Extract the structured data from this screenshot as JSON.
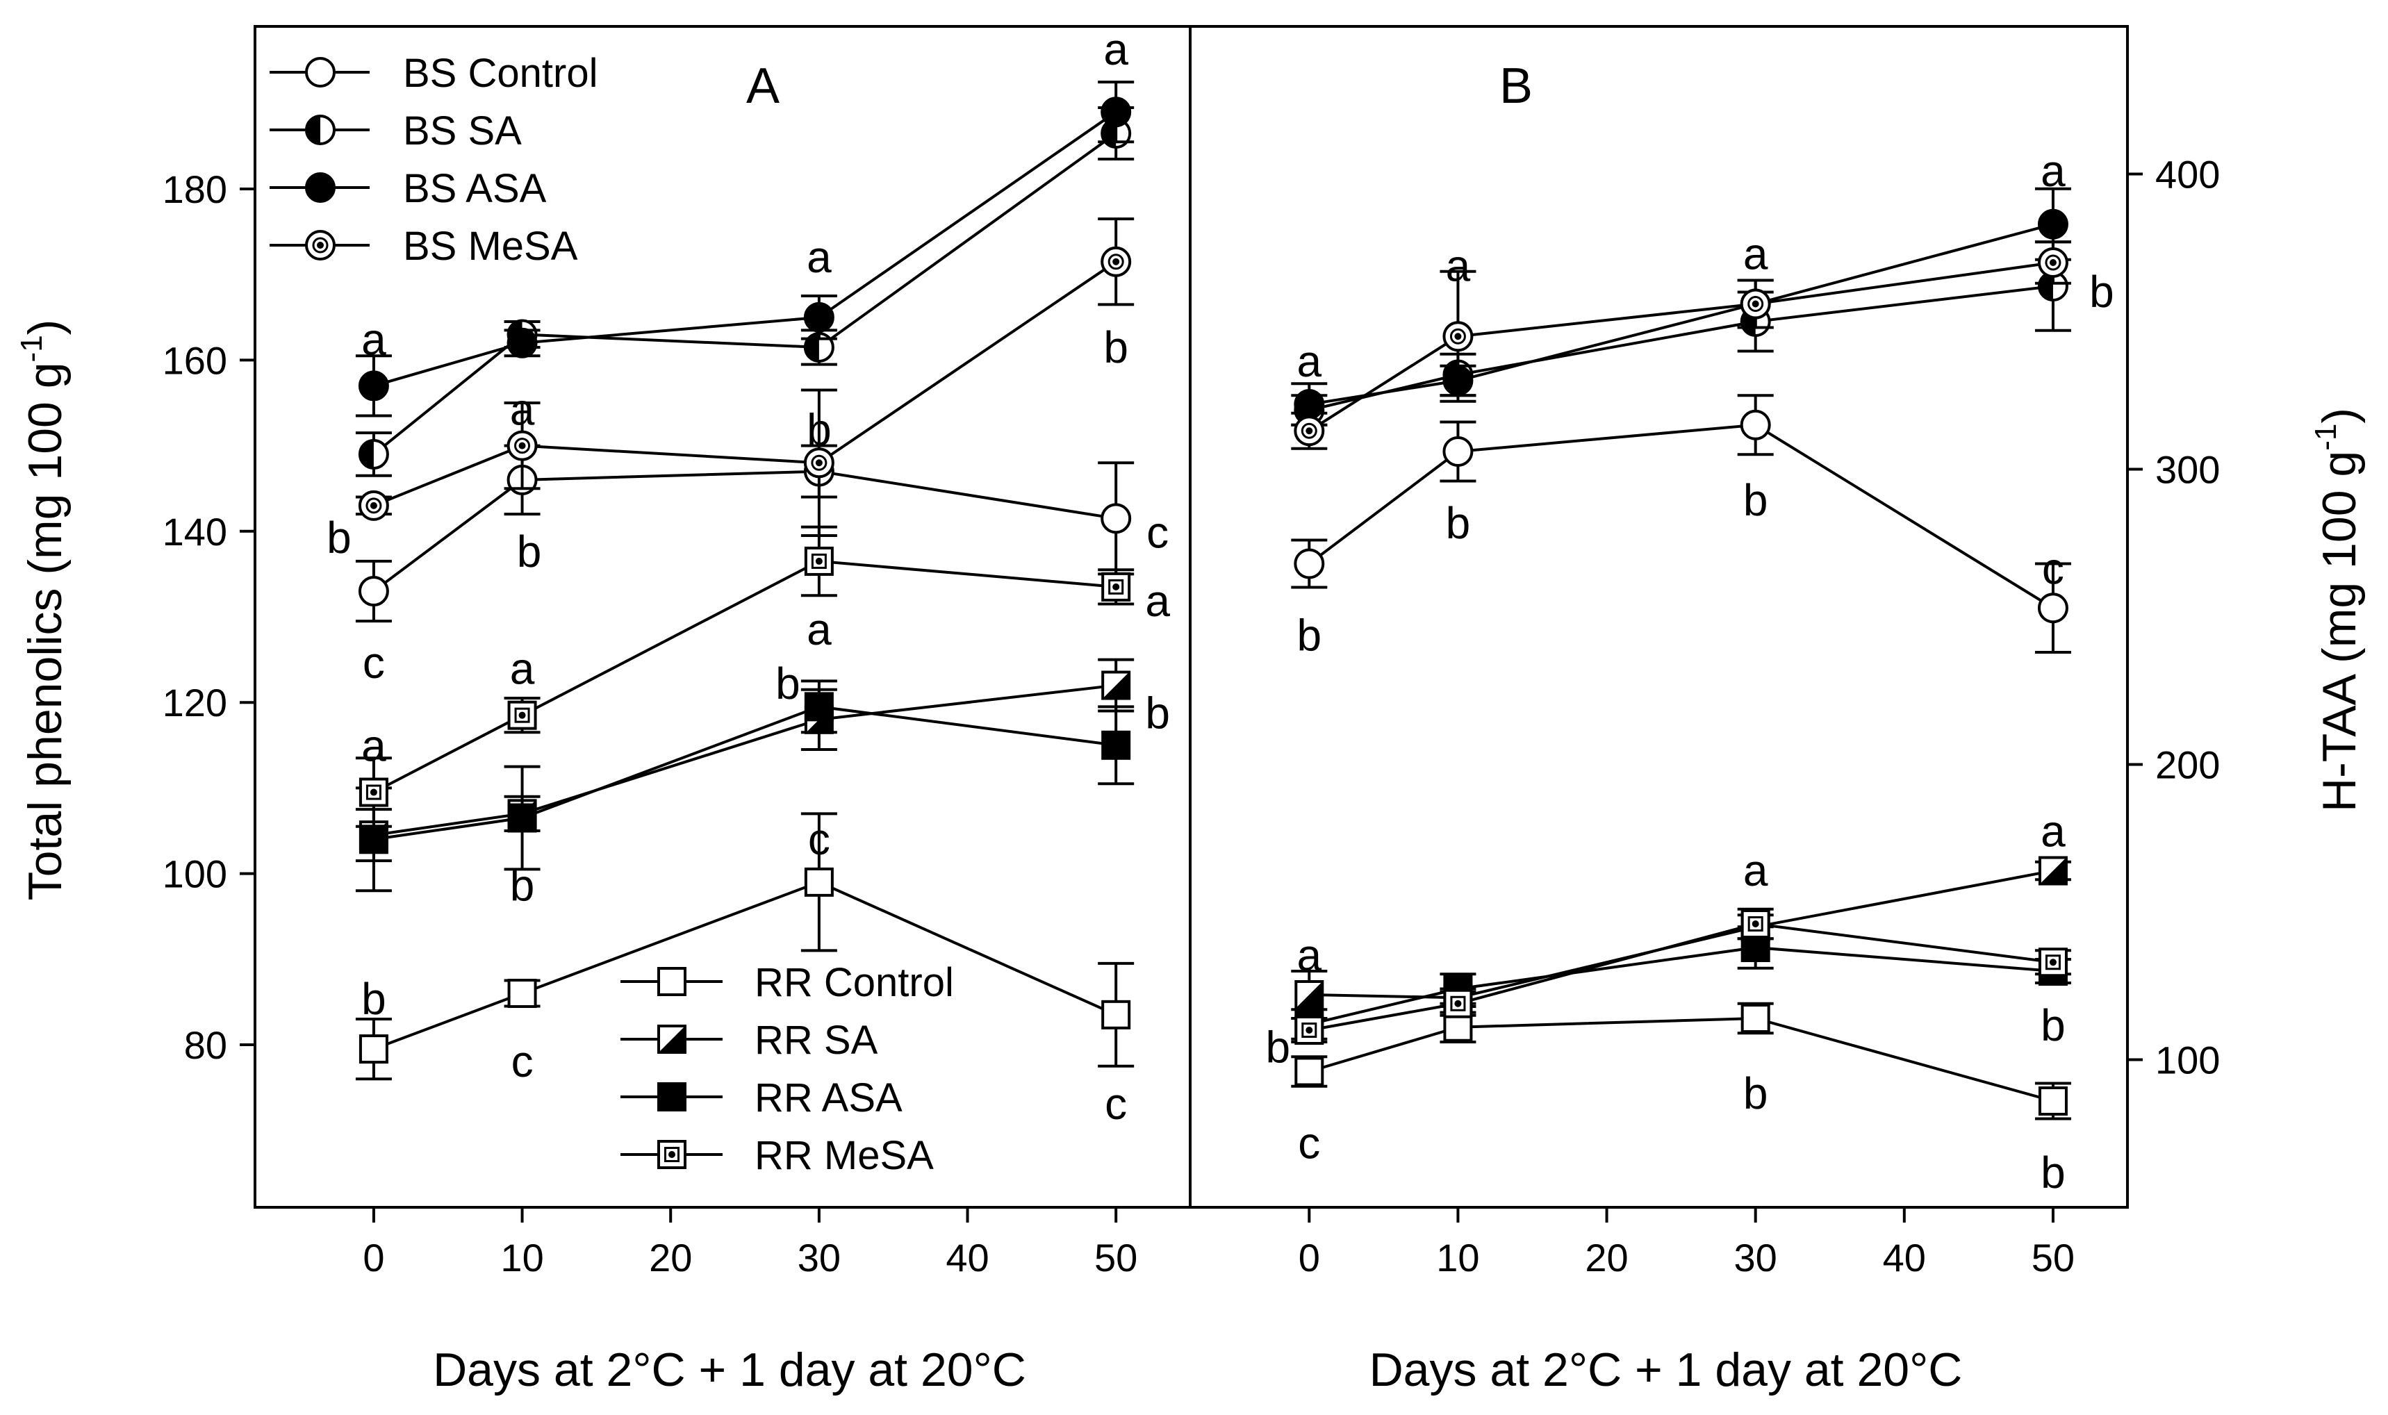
{
  "chart_data": [
    {
      "type": "line",
      "panel_label": "A",
      "xlabel": "Days at 2°C + 1 day at 20°C",
      "ylabel_main": "Total phenolics (mg 100 g",
      "ylabel_sup": "-1",
      "ylabel_close": ")",
      "xlim": [
        -8,
        55
      ],
      "ylim": [
        61,
        199
      ],
      "xticks": [
        0,
        10,
        20,
        30,
        40,
        50
      ],
      "yticks": [
        80,
        100,
        120,
        140,
        160,
        180
      ],
      "x": [
        0,
        10,
        30,
        50
      ],
      "series": [
        {
          "name": "BS Control",
          "marker": "circle-open",
          "values": [
            133,
            146,
            147,
            141.5
          ],
          "errors": [
            3.5,
            4,
            3,
            6.5
          ],
          "labels": [
            "c",
            "b",
            "",
            "c"
          ]
        },
        {
          "name": "BS SA",
          "marker": "circle-half",
          "values": [
            149,
            163,
            161.5,
            186.5
          ],
          "errors": [
            2.5,
            1.5,
            2,
            3
          ],
          "labels": [
            "",
            "",
            "",
            ""
          ]
        },
        {
          "name": "BS ASA",
          "marker": "circle-filled",
          "values": [
            157,
            162,
            165,
            189
          ],
          "errors": [
            3.5,
            1.5,
            2.5,
            3.5
          ],
          "labels": [
            "a",
            "",
            "a",
            "a"
          ]
        },
        {
          "name": "BS MeSA",
          "marker": "circle-dot",
          "values": [
            143,
            150,
            148,
            171.5
          ],
          "errors": [
            1,
            5,
            8.5,
            5
          ],
          "labels": [
            "b",
            "a",
            "b",
            "b"
          ]
        },
        {
          "name": "RR Control",
          "marker": "square-open",
          "values": [
            79.5,
            86,
            99,
            83.5
          ],
          "errors": [
            3.5,
            1.5,
            8,
            6
          ],
          "labels": [
            "b",
            "c",
            "c",
            "c"
          ]
        },
        {
          "name": "RR SA",
          "marker": "square-half",
          "values": [
            104.5,
            107,
            118,
            122
          ],
          "errors": [
            3,
            2,
            3.5,
            3
          ],
          "labels": [
            "",
            "b",
            "b",
            "b"
          ]
        },
        {
          "name": "RR ASA",
          "marker": "square-filled",
          "values": [
            104,
            106.5,
            119.5,
            115
          ],
          "errors": [
            6,
            6,
            3,
            4.5
          ],
          "labels": [
            "",
            "",
            "",
            ""
          ]
        },
        {
          "name": "RR MeSA",
          "marker": "square-dot",
          "values": [
            109.5,
            118.5,
            136.5,
            133.5
          ],
          "errors": [
            4,
            2,
            4,
            2
          ],
          "labels": [
            "a",
            "a",
            "a",
            "a"
          ]
        }
      ]
    },
    {
      "type": "line",
      "panel_label": "B",
      "xlabel": "Days at 2°C + 1 day at 20°C",
      "ylabel_main": "H-TAA (mg 100 g",
      "ylabel_sup": "-1",
      "ylabel_close": ")",
      "xlim": [
        -8,
        55
      ],
      "ylim": [
        50,
        450
      ],
      "xticks": [
        0,
        10,
        20,
        30,
        40,
        50
      ],
      "yticks": [
        100,
        200,
        300,
        400
      ],
      "x": [
        0,
        10,
        30,
        50
      ],
      "series": [
        {
          "name": "BS Control",
          "marker": "circle-open",
          "values": [
            268,
            306,
            315,
            253
          ],
          "errors": [
            8,
            10,
            10,
            15
          ],
          "labels": [
            "b",
            "b",
            "b",
            "c"
          ]
        },
        {
          "name": "BS SA",
          "marker": "circle-half",
          "values": [
            320,
            332,
            350,
            362
          ],
          "errors": [
            5,
            7,
            10,
            15
          ],
          "labels": [
            "",
            "",
            "",
            "b"
          ]
        },
        {
          "name": "BS ASA",
          "marker": "circle-filled",
          "values": [
            322,
            330,
            356,
            383
          ],
          "errors": [
            7,
            5,
            8,
            12
          ],
          "labels": [
            "a",
            "",
            "",
            "a"
          ]
        },
        {
          "name": "BS MeSA",
          "marker": "circle-dot",
          "values": [
            313,
            345,
            356,
            370
          ],
          "errors": [
            6,
            22,
            8,
            7
          ],
          "labels": [
            "",
            "a",
            "a",
            ""
          ]
        },
        {
          "name": "RR Control",
          "marker": "square-open",
          "values": [
            96,
            111,
            114,
            86
          ],
          "errors": [
            5,
            5,
            5,
            6
          ],
          "labels": [
            "c",
            "",
            "b",
            "b"
          ]
        },
        {
          "name": "RR SA",
          "marker": "square-half",
          "values": [
            122,
            121,
            145,
            164
          ],
          "errors": [
            8,
            3,
            4,
            3
          ],
          "labels": [
            "a",
            "",
            "",
            "a"
          ]
        },
        {
          "name": "RR ASA",
          "marker": "square-filled",
          "values": [
            112,
            124,
            138,
            130
          ],
          "errors": [
            5,
            5,
            7,
            4
          ],
          "labels": [
            "b",
            "",
            "",
            "b"
          ]
        },
        {
          "name": "RR MeSA",
          "marker": "square-dot",
          "values": [
            110,
            119,
            146,
            133
          ],
          "errors": [
            4,
            4,
            5,
            4
          ],
          "labels": [
            "",
            "",
            "a",
            ""
          ]
        }
      ]
    }
  ],
  "legend": {
    "top": [
      "BS Control",
      "BS SA",
      "BS ASA",
      "BS MeSA"
    ],
    "bottom": [
      "RR Control",
      "RR SA",
      "RR ASA",
      "RR MeSA"
    ]
  }
}
